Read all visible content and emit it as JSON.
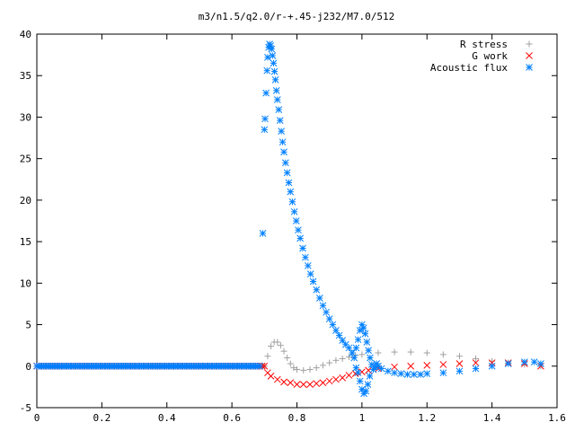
{
  "chart_data": {
    "type": "scatter",
    "title": "m3/n1.5/q2.0/r-+.45-j232/M7.0/512",
    "xlabel": "",
    "ylabel": "",
    "xlim": [
      0,
      1.6
    ],
    "ylim": [
      -5,
      40
    ],
    "x_ticks": [
      "0",
      "0.2",
      "0.4",
      "0.6",
      "0.8",
      "1",
      "1.2",
      "1.4",
      "1.6"
    ],
    "y_ticks": [
      "-5",
      "0",
      "5",
      "10",
      "15",
      "20",
      "25",
      "30",
      "35",
      "40"
    ],
    "grid": false,
    "legend_position": "top-right",
    "x_range_data": [
      0,
      1.55
    ],
    "series": [
      {
        "name": "R stress",
        "marker": "plus",
        "color": "#a0a0a0",
        "points": [
          [
            0.7,
            0.0
          ],
          [
            0.71,
            1.2
          ],
          [
            0.72,
            2.4
          ],
          [
            0.73,
            2.9
          ],
          [
            0.74,
            2.9
          ],
          [
            0.75,
            2.5
          ],
          [
            0.76,
            1.8
          ],
          [
            0.77,
            1.0
          ],
          [
            0.78,
            0.3
          ],
          [
            0.79,
            -0.2
          ],
          [
            0.8,
            -0.4
          ],
          [
            0.82,
            -0.5
          ],
          [
            0.84,
            -0.4
          ],
          [
            0.86,
            -0.2
          ],
          [
            0.88,
            0.1
          ],
          [
            0.9,
            0.4
          ],
          [
            0.92,
            0.7
          ],
          [
            0.94,
            0.9
          ],
          [
            0.96,
            1.1
          ],
          [
            0.98,
            1.3
          ],
          [
            1.0,
            1.4
          ],
          [
            1.05,
            1.6
          ],
          [
            1.1,
            1.7
          ],
          [
            1.15,
            1.7
          ],
          [
            1.2,
            1.6
          ],
          [
            1.25,
            1.4
          ],
          [
            1.3,
            1.2
          ],
          [
            1.35,
            0.9
          ],
          [
            1.4,
            0.6
          ],
          [
            1.45,
            0.4
          ],
          [
            1.5,
            0.2
          ],
          [
            1.55,
            0.0
          ]
        ]
      },
      {
        "name": "G work",
        "marker": "cross",
        "color": "#ff0000",
        "points": [
          [
            0.7,
            0.0
          ],
          [
            0.71,
            -0.8
          ],
          [
            0.72,
            -1.2
          ],
          [
            0.74,
            -1.6
          ],
          [
            0.76,
            -1.9
          ],
          [
            0.78,
            -2.0
          ],
          [
            0.8,
            -2.2
          ],
          [
            0.82,
            -2.2
          ],
          [
            0.84,
            -2.2
          ],
          [
            0.86,
            -2.1
          ],
          [
            0.88,
            -2.0
          ],
          [
            0.9,
            -1.8
          ],
          [
            0.92,
            -1.6
          ],
          [
            0.94,
            -1.4
          ],
          [
            0.96,
            -1.1
          ],
          [
            0.98,
            -0.9
          ],
          [
            1.0,
            -0.7
          ],
          [
            1.02,
            -0.5
          ],
          [
            1.05,
            -0.3
          ],
          [
            1.1,
            -0.1
          ],
          [
            1.15,
            0.0
          ],
          [
            1.2,
            0.1
          ],
          [
            1.25,
            0.2
          ],
          [
            1.3,
            0.3
          ],
          [
            1.35,
            0.4
          ],
          [
            1.4,
            0.4
          ],
          [
            1.45,
            0.4
          ],
          [
            1.5,
            0.3
          ],
          [
            1.55,
            0.0
          ]
        ]
      },
      {
        "name": "Acoustic flux",
        "marker": "star",
        "color": "#0080ff",
        "points": [
          [
            0.695,
            16.0
          ],
          [
            0.7,
            28.5
          ],
          [
            0.702,
            29.8
          ],
          [
            0.705,
            32.9
          ],
          [
            0.708,
            35.6
          ],
          [
            0.71,
            37.2
          ],
          [
            0.713,
            38.4
          ],
          [
            0.716,
            38.8
          ],
          [
            0.719,
            38.6
          ],
          [
            0.722,
            38.2
          ],
          [
            0.725,
            37.4
          ],
          [
            0.728,
            36.5
          ],
          [
            0.731,
            35.5
          ],
          [
            0.734,
            34.5
          ],
          [
            0.737,
            33.2
          ],
          [
            0.74,
            32.1
          ],
          [
            0.744,
            30.9
          ],
          [
            0.748,
            29.6
          ],
          [
            0.752,
            28.3
          ],
          [
            0.756,
            27.0
          ],
          [
            0.76,
            25.8
          ],
          [
            0.765,
            24.5
          ],
          [
            0.77,
            23.3
          ],
          [
            0.775,
            22.1
          ],
          [
            0.78,
            21.0
          ],
          [
            0.786,
            19.8
          ],
          [
            0.792,
            18.6
          ],
          [
            0.798,
            17.5
          ],
          [
            0.804,
            16.4
          ],
          [
            0.81,
            15.4
          ],
          [
            0.818,
            14.2
          ],
          [
            0.826,
            13.1
          ],
          [
            0.834,
            12.1
          ],
          [
            0.842,
            11.1
          ],
          [
            0.85,
            10.2
          ],
          [
            0.86,
            9.2
          ],
          [
            0.87,
            8.2
          ],
          [
            0.88,
            7.3
          ],
          [
            0.89,
            6.5
          ],
          [
            0.9,
            5.7
          ],
          [
            0.91,
            5.0
          ],
          [
            0.92,
            4.3
          ],
          [
            0.93,
            3.7
          ],
          [
            0.94,
            3.1
          ],
          [
            0.95,
            2.6
          ],
          [
            0.96,
            2.2
          ],
          [
            0.97,
            1.6
          ],
          [
            0.976,
            1.0
          ],
          [
            0.982,
            2.2
          ],
          [
            0.988,
            3.2
          ],
          [
            0.994,
            4.3
          ],
          [
            1.0,
            5.0
          ],
          [
            1.005,
            4.6
          ],
          [
            1.01,
            3.9
          ],
          [
            1.015,
            2.9
          ],
          [
            1.02,
            1.9
          ],
          [
            1.025,
            1.0
          ],
          [
            1.03,
            0.2
          ],
          [
            1.035,
            -0.4
          ],
          [
            1.04,
            -0.1
          ],
          [
            1.045,
            0.3
          ],
          [
            1.05,
            0.0
          ],
          [
            1.06,
            -0.3
          ],
          [
            1.08,
            -0.6
          ],
          [
            1.1,
            -0.8
          ],
          [
            1.12,
            -0.9
          ],
          [
            1.14,
            -1.0
          ],
          [
            1.16,
            -1.0
          ],
          [
            1.18,
            -1.0
          ],
          [
            1.2,
            -0.9
          ],
          [
            1.25,
            -0.8
          ],
          [
            1.3,
            -0.6
          ],
          [
            1.35,
            -0.3
          ],
          [
            1.4,
            0.0
          ],
          [
            1.45,
            0.3
          ],
          [
            1.5,
            0.5
          ],
          [
            1.53,
            0.5
          ],
          [
            1.55,
            0.3
          ],
          [
            0.994,
            -1.8
          ],
          [
            1.0,
            -2.8
          ],
          [
            1.006,
            -3.3
          ],
          [
            1.012,
            -3.0
          ],
          [
            1.018,
            -2.2
          ],
          [
            1.024,
            -1.2
          ],
          [
            0.988,
            -0.8
          ],
          [
            0.982,
            -0.2
          ]
        ]
      }
    ]
  }
}
